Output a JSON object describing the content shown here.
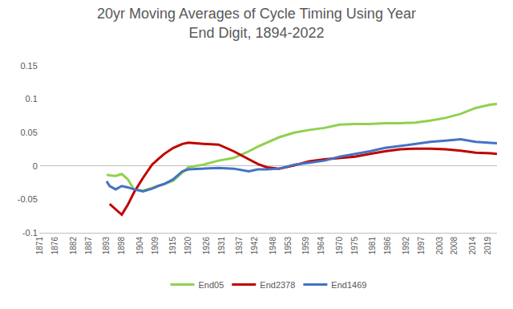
{
  "chart_data": {
    "type": "line",
    "title": "20yr Moving Averages of Cycle Timing Using Year\nEnd Digit, 1894-2022",
    "x": [
      1893,
      1894,
      1896,
      1898,
      1900,
      1902,
      1905,
      1908,
      1910,
      1912,
      1915,
      1918,
      1920,
      1925,
      1930,
      1935,
      1940,
      1943,
      1946,
      1950,
      1955,
      1960,
      1965,
      1970,
      1975,
      1980,
      1985,
      1990,
      1995,
      2000,
      2005,
      2010,
      2015,
      2020,
      2022
    ],
    "series": [
      {
        "name": "End05",
        "color": "#92d050",
        "values": [
          -0.013,
          -0.014,
          -0.015,
          -0.012,
          -0.02,
          -0.035,
          -0.037,
          -0.033,
          -0.03,
          -0.027,
          -0.022,
          -0.01,
          -0.002,
          0.002,
          0.008,
          0.012,
          0.022,
          0.029,
          0.035,
          0.043,
          0.05,
          0.054,
          0.057,
          0.062,
          0.063,
          0.063,
          0.064,
          0.064,
          0.065,
          0.068,
          0.072,
          0.078,
          0.087,
          0.092,
          0.093
        ]
      },
      {
        "name": "End2378",
        "color": "#c00000",
        "values": [
          null,
          -0.057,
          -0.065,
          -0.073,
          -0.058,
          -0.04,
          -0.018,
          0.002,
          0.01,
          0.018,
          0.027,
          0.033,
          0.035,
          0.033,
          0.032,
          0.022,
          0.01,
          0.003,
          -0.002,
          -0.004,
          0.001,
          0.007,
          0.01,
          0.012,
          0.014,
          0.018,
          0.022,
          0.025,
          0.026,
          0.026,
          0.025,
          0.023,
          0.02,
          0.019,
          0.018
        ]
      },
      {
        "name": "End1469",
        "color": "#4472c4",
        "values": [
          -0.023,
          -0.03,
          -0.035,
          -0.03,
          -0.032,
          -0.035,
          -0.038,
          -0.034,
          -0.03,
          -0.027,
          -0.02,
          -0.008,
          -0.005,
          -0.004,
          -0.003,
          -0.004,
          -0.008,
          -0.005,
          -0.005,
          -0.004,
          0.002,
          0.005,
          0.008,
          0.014,
          0.018,
          0.022,
          0.027,
          0.03,
          0.033,
          0.036,
          0.038,
          0.04,
          0.036,
          0.035,
          0.034
        ]
      }
    ],
    "xlim": [
      1871,
      2022
    ],
    "xticks": [
      1871,
      1876,
      1882,
      1887,
      1893,
      1898,
      1904,
      1909,
      1915,
      1920,
      1926,
      1931,
      1937,
      1942,
      1948,
      1953,
      1959,
      1964,
      1970,
      1975,
      1981,
      1986,
      1992,
      1997,
      2003,
      2008,
      2014,
      2019
    ],
    "ylim": [
      -0.1,
      0.15
    ],
    "yticks": [
      -0.1,
      -0.05,
      0,
      0.05,
      0.1,
      0.15
    ],
    "grid": false,
    "legend": "bottom"
  }
}
